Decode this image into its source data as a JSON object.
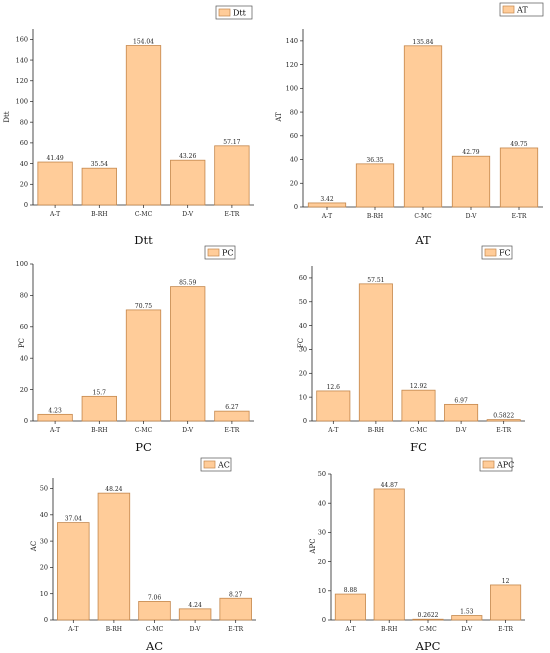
{
  "colors": {
    "bar_fill": "#FFCC99",
    "bar_stroke": "#C4874C",
    "axis": "#222222"
  },
  "chart_data": [
    {
      "type": "bar",
      "title": "Dtt",
      "ylabel": "Dtt",
      "legend": "Dtt",
      "categories": [
        "A-T",
        "B-RH",
        "C-MC",
        "D-V",
        "E-TR"
      ],
      "values": [
        41.49,
        35.54,
        154.04,
        43.26,
        57.17
      ],
      "value_labels": [
        "41.49",
        "35.54",
        "154.04",
        "43.26",
        "57.17"
      ],
      "ylim": [
        0,
        170
      ],
      "yticks": [
        0,
        20,
        40,
        60,
        80,
        100,
        120,
        140,
        160
      ],
      "legend_position": "top-right",
      "grid": false
    },
    {
      "type": "bar",
      "title": "AT",
      "ylabel": "AT",
      "legend": "AT",
      "categories": [
        "A-T",
        "B-RH",
        "C-MC",
        "D-V",
        "E-TR"
      ],
      "values": [
        3.42,
        36.35,
        135.84,
        42.79,
        49.75
      ],
      "value_labels": [
        "3.42",
        "36.35",
        "135.84",
        "42.79",
        "49.75"
      ],
      "ylim": [
        0,
        150
      ],
      "yticks": [
        0,
        20,
        40,
        60,
        80,
        100,
        120,
        140
      ],
      "legend_position": "top-right",
      "grid": false
    },
    {
      "type": "bar",
      "title": "PC",
      "ylabel": "PC",
      "legend": "PC",
      "categories": [
        "A-T",
        "B-RH",
        "C-MC",
        "D-V",
        "E-TR"
      ],
      "values": [
        4.23,
        15.7,
        70.75,
        85.59,
        6.27
      ],
      "value_labels": [
        "4.23",
        "15.7",
        "70.75",
        "85.59",
        "6.27"
      ],
      "ylim": [
        0,
        100
      ],
      "yticks": [
        0,
        20,
        40,
        60,
        80,
        100
      ],
      "legend_position": "top-center",
      "grid": false
    },
    {
      "type": "bar",
      "title": "FC",
      "ylabel": "FC",
      "legend": "FC",
      "categories": [
        "A-T",
        "B-RH",
        "C-MC",
        "D-V",
        "E-TR"
      ],
      "values": [
        12.6,
        57.51,
        12.92,
        6.97,
        0.5822
      ],
      "value_labels": [
        "12.6",
        "57.51",
        "12.92",
        "6.97",
        "0.5822"
      ],
      "ylim": [
        0,
        65
      ],
      "yticks": [
        0,
        10,
        20,
        30,
        40,
        50,
        60
      ],
      "legend_position": "top-right",
      "grid": false
    },
    {
      "type": "bar",
      "title": "AC",
      "ylabel": "AC",
      "legend": "AC",
      "categories": [
        "A-T",
        "B-RH",
        "C-MC",
        "D-V",
        "E-TR"
      ],
      "values": [
        37.04,
        48.24,
        7.06,
        4.24,
        8.27
      ],
      "value_labels": [
        "37.04",
        "48.24",
        "7.06",
        "4.24",
        "8.27"
      ],
      "ylim": [
        0,
        54
      ],
      "yticks": [
        0,
        10,
        20,
        30,
        40,
        50
      ],
      "legend_position": "top-center",
      "grid": false
    },
    {
      "type": "bar",
      "title": "APC",
      "ylabel": "APC",
      "legend": "APC",
      "categories": [
        "A-T",
        "B-RH",
        "C-MC",
        "D-V",
        "E-TR"
      ],
      "values": [
        8.88,
        44.87,
        0.2622,
        1.53,
        12
      ],
      "value_labels": [
        "8.88",
        "44.87",
        "0.2622",
        "1.53",
        "12"
      ],
      "ylim": [
        0,
        50
      ],
      "yticks": [
        0,
        10,
        20,
        30,
        40,
        50
      ],
      "legend_position": "top-center",
      "grid": false
    }
  ]
}
